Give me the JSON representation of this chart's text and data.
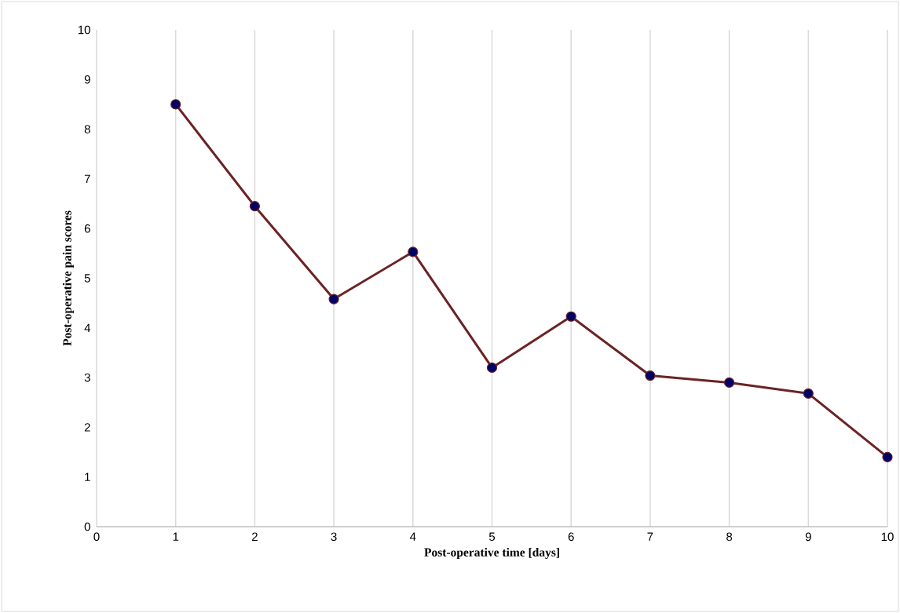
{
  "chart_data": {
    "type": "line",
    "xlabel": "Post-operative time [days]",
    "ylabel": "Post-operative pain scores",
    "x": [
      1,
      2,
      3,
      4,
      5,
      6,
      7,
      8,
      9,
      10
    ],
    "series": [
      {
        "color": "#6b2324",
        "values": [
          8.5,
          6.45,
          4.58,
          5.53,
          3.2,
          4.23,
          3.04,
          2.9,
          2.68,
          1.4
        ]
      }
    ],
    "xlim": [
      0,
      10
    ],
    "ylim": [
      0,
      10
    ],
    "xticks": [
      0,
      1,
      2,
      3,
      4,
      5,
      6,
      7,
      8,
      9,
      10
    ],
    "yticks": [
      0,
      1,
      2,
      3,
      4,
      5,
      6,
      7,
      8,
      9,
      10
    ],
    "grid": "x",
    "marker": "circle",
    "line_style": "solid"
  }
}
